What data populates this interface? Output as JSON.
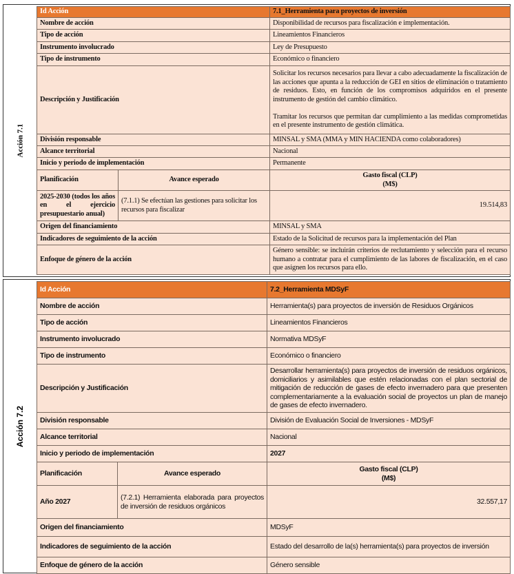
{
  "colors": {
    "header_bg": "#e7782f",
    "row_bg": "#fbe3d5"
  },
  "actions": [
    {
      "side_label": "Acción 7.1",
      "id_label": "Id Acción",
      "id_value": "7.1_Herramienta para proyectos de inversión",
      "rows": [
        {
          "k": "Nombre de acción",
          "v": "Disponibilidad de recursos para fiscalización e implementación."
        },
        {
          "k": "Tipo de acción",
          "v": "Lineamientos Financieros"
        },
        {
          "k": "Instrumento involucrado",
          "v": "Ley de Presupuesto"
        },
        {
          "k": "Tipo de instrumento",
          "v": "Económico o financiero"
        },
        {
          "k": "Descripción y Justificación",
          "v": "Solicitar los recursos necesarios para llevar a cabo adecuadamente la fiscalización de las acciones que apunta a la reducción de GEI en sitios de eliminación o tratamiento de residuos. Esto, en función de los compromisos adquiridos en el presente instrumento de gestión del cambio climático.",
          "v2": "Tramitar los recursos que permitan dar cumplimiento a las medidas comprometidas en el presente instrumento de gestión climática."
        },
        {
          "k": "División responsable",
          "v": "MINSAL y SMA (MMA y MIN HACIENDA como colaboradores)"
        },
        {
          "k": "Alcance territorial",
          "v": "Nacional"
        },
        {
          "k": "Inicio y periodo de implementación",
          "v": "Permanente"
        }
      ],
      "plan": {
        "h1": "Planificación",
        "h2": "Avance esperado",
        "h3a": "Gasto fiscal (CLP)",
        "h3b": "(M$)",
        "period": "2025-2030 (todos los años en el ejercicio presupuestario anual)",
        "avance": "(7.1.1) Se efectúan las gestiones para solicitar los recursos para fiscalizar",
        "gasto": "19.514,83"
      },
      "rows2": [
        {
          "k": "Origen del financiamiento",
          "v": "MINSAL y SMA"
        },
        {
          "k": "Indicadores de seguimiento de la acción",
          "v": "Estado de la Solicitud de recursos para la implementación del Plan"
        },
        {
          "k": "Enfoque de género de la acción",
          "v": "Género sensible: se incluirán criterios de reclutamiento y selección para el recurso humano a contratar para el cumplimiento de las labores de fiscalización, en el caso que asignen los recursos para ello."
        }
      ]
    },
    {
      "side_label": "Acción 7.2",
      "id_label": "Id Acción",
      "id_value": "7.2_Herramienta MDSyF",
      "rows": [
        {
          "k": "Nombre de acción",
          "v": "Herramienta(s) para proyectos de inversión de Residuos Orgánicos"
        },
        {
          "k": "Tipo de acción",
          "v": "Lineamientos Financieros"
        },
        {
          "k": "Instrumento involucrado",
          "v": "Normativa MDSyF"
        },
        {
          "k": "Tipo de instrumento",
          "v": "Económico o financiero"
        },
        {
          "k": "Descripción y Justificación",
          "v": "Desarrollar herramienta(s) para proyectos de inversión de residuos orgánicos, domiciliarios y asimilables que estén relacionadas con el plan sectorial de mitigación de reducción de gases de efecto invernadero para que presenten complementariamente a la evaluación social de proyectos un plan de manejo de gases de efecto invernadero."
        },
        {
          "k": "División responsable",
          "v": "División de Evaluación Social de Inversiones - MDSyF"
        },
        {
          "k": "Alcance territorial",
          "v": "Nacional"
        },
        {
          "k": "Inicio y periodo de implementación",
          "v": "2027"
        }
      ],
      "plan": {
        "h1": "Planificación",
        "h2": "Avance esperado",
        "h3a": "Gasto fiscal (CLP)",
        "h3b": "(M$)",
        "period": "Año 2027",
        "avance": "(7.2.1) Herramienta elaborada para proyectos de inversión de residuos orgánicos",
        "gasto": "32.557,17"
      },
      "rows2": [
        {
          "k": "Origen del financiamiento",
          "v": "MDSyF"
        },
        {
          "k": "Indicadores de seguimiento de la acción",
          "v": "Estado del desarrollo de la(s) herramienta(s) para proyectos de inversión"
        },
        {
          "k": "Enfoque de género de la acción",
          "v": "Género sensible"
        }
      ]
    }
  ]
}
